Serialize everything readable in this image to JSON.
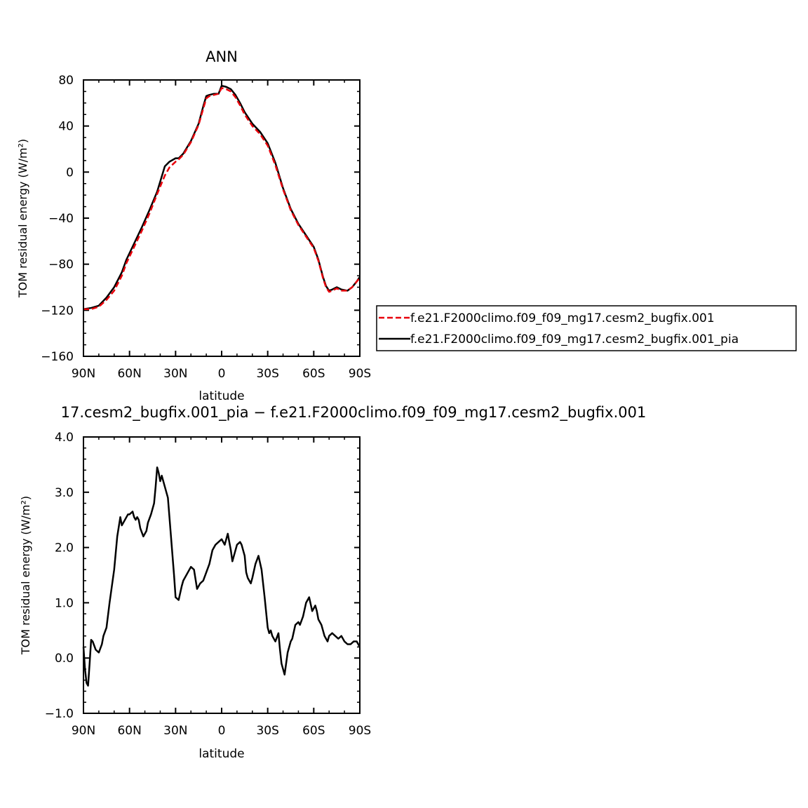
{
  "chart_data": [
    {
      "type": "line",
      "title": "ANN",
      "xlabel": "latitude",
      "ylabel": "TOM residual energy (W/m²)",
      "xlim": [
        90,
        -90
      ],
      "ylim": [
        -160,
        80
      ],
      "xticks": [
        {
          "v": 90,
          "label": "90N"
        },
        {
          "v": 60,
          "label": "60N"
        },
        {
          "v": 30,
          "label": "30N"
        },
        {
          "v": 0,
          "label": "0"
        },
        {
          "v": -30,
          "label": "30S"
        },
        {
          "v": -60,
          "label": "60S"
        },
        {
          "v": -90,
          "label": "90S"
        }
      ],
      "yticks": [
        {
          "v": 80,
          "label": "80"
        },
        {
          "v": 40,
          "label": "40"
        },
        {
          "v": 0,
          "label": "0"
        },
        {
          "v": -40,
          "label": "−40"
        },
        {
          "v": -80,
          "label": "−80"
        },
        {
          "v": -120,
          "label": "−120"
        },
        {
          "v": -160,
          "label": "−160"
        }
      ],
      "legend_position": "right",
      "series": [
        {
          "name": "f.e21.F2000climo.f09_f09_mg17.cesm2_bugfix.001",
          "color": "#e8000b",
          "dash": "dashed",
          "x": [
            90,
            85,
            80,
            75,
            70,
            65,
            62,
            57,
            52,
            47,
            42,
            37,
            34,
            30,
            28,
            25,
            20,
            15,
            12,
            10,
            8,
            5,
            2,
            0,
            -3,
            -6,
            -9,
            -12,
            -15,
            -20,
            -25,
            -30,
            -35,
            -40,
            -45,
            -50,
            -55,
            -60,
            -63,
            -66,
            -68,
            -70,
            -72,
            -75,
            -78,
            -82,
            -85,
            -88,
            -90
          ],
          "y": [
            -119,
            -119,
            -117,
            -111,
            -103,
            -90,
            -79,
            -65,
            -51,
            -36,
            -19,
            -3,
            4,
            9,
            11,
            15,
            26,
            41,
            55,
            64,
            66,
            67,
            68,
            73,
            72,
            70,
            65,
            58,
            50,
            40,
            33,
            23,
            6,
            -15,
            -33,
            -46,
            -56,
            -66,
            -77,
            -92,
            -100,
            -104,
            -103,
            -101,
            -103,
            -103,
            -100,
            -95,
            -92
          ]
        },
        {
          "name": "f.e21.F2000climo.f09_f09_mg17.cesm2_bugfix.001_pia",
          "color": "#000000",
          "dash": "solid",
          "x": [
            90,
            85,
            80,
            75,
            70,
            65,
            62,
            57,
            52,
            47,
            42,
            37,
            34,
            30,
            28,
            25,
            20,
            15,
            12,
            10,
            8,
            5,
            2,
            0,
            -3,
            -6,
            -9,
            -12,
            -15,
            -20,
            -25,
            -30,
            -35,
            -40,
            -45,
            -50,
            -55,
            -60,
            -63,
            -66,
            -68,
            -70,
            -72,
            -75,
            -78,
            -82,
            -85,
            -88,
            -90
          ],
          "y": [
            -119,
            -118,
            -116,
            -109,
            -100,
            -87,
            -76,
            -62,
            -48,
            -33,
            -17,
            5,
            9,
            12,
            12,
            16,
            27,
            42,
            57,
            66,
            67,
            68,
            68,
            75,
            74,
            72,
            67,
            60,
            52,
            42,
            35,
            25,
            8,
            -14,
            -32,
            -45,
            -55,
            -65,
            -76,
            -91,
            -99,
            -103,
            -102,
            -100,
            -102,
            -103,
            -100,
            -95,
            -91
          ]
        }
      ]
    },
    {
      "type": "line",
      "title": "17.cesm2_bugfix.001_pia − f.e21.F2000climo.f09_f09_mg17.cesm2_bugfix.001",
      "xlabel": "latitude",
      "ylabel": "TOM residual energy (W/m²)",
      "xlim": [
        90,
        -90
      ],
      "ylim": [
        -1.0,
        4.0
      ],
      "xticks": [
        {
          "v": 90,
          "label": "90N"
        },
        {
          "v": 60,
          "label": "60N"
        },
        {
          "v": 30,
          "label": "30N"
        },
        {
          "v": 0,
          "label": "0"
        },
        {
          "v": -30,
          "label": "30S"
        },
        {
          "v": -60,
          "label": "60S"
        },
        {
          "v": -90,
          "label": "90S"
        }
      ],
      "yticks": [
        {
          "v": 4.0,
          "label": "4.0"
        },
        {
          "v": 3.0,
          "label": "3.0"
        },
        {
          "v": 2.0,
          "label": "2.0"
        },
        {
          "v": 1.0,
          "label": "1.0"
        },
        {
          "v": 0.0,
          "label": "0.0"
        },
        {
          "v": -1.0,
          "label": "−1.0"
        }
      ],
      "series": [
        {
          "color": "#000000",
          "dash": "solid",
          "x": [
            90,
            89,
            88,
            87,
            86,
            85,
            84,
            82,
            80,
            78,
            77,
            75,
            73,
            71,
            70,
            68,
            66,
            65,
            63,
            61,
            60,
            58,
            57,
            56,
            55,
            54,
            53,
            51,
            49,
            48,
            46,
            44,
            43,
            42,
            41,
            40,
            39,
            37,
            35,
            33,
            31,
            30,
            28,
            26,
            25,
            22,
            20,
            18,
            16,
            14,
            12,
            10,
            8,
            6,
            4,
            2,
            0,
            -2,
            -3,
            -4,
            -5,
            -6,
            -7,
            -8,
            -10,
            -12,
            -13,
            -15,
            -16,
            -17,
            -18,
            -19,
            -20,
            -22,
            -24,
            -26,
            -28,
            -30,
            -31,
            -32,
            -33,
            -35,
            -37,
            -38,
            -39,
            -40,
            -41,
            -43,
            -45,
            -46,
            -48,
            -50,
            -51,
            -53,
            -55,
            -57,
            -59,
            -61,
            -62,
            -63,
            -64,
            -65,
            -66,
            -67,
            -68,
            -69,
            -70,
            -72,
            -74,
            -76,
            -78,
            -80,
            -82,
            -84,
            -86,
            -88,
            -89,
            -90
          ],
          "y": [
            0.2,
            -0.2,
            -0.45,
            -0.5,
            -0.1,
            0.33,
            0.3,
            0.15,
            0.1,
            0.25,
            0.4,
            0.55,
            1.0,
            1.4,
            1.6,
            2.2,
            2.55,
            2.4,
            2.5,
            2.6,
            2.6,
            2.65,
            2.55,
            2.5,
            2.55,
            2.5,
            2.35,
            2.2,
            2.3,
            2.45,
            2.6,
            2.8,
            3.1,
            3.45,
            3.35,
            3.2,
            3.3,
            3.1,
            2.9,
            2.2,
            1.5,
            1.1,
            1.05,
            1.3,
            1.4,
            1.55,
            1.65,
            1.6,
            1.25,
            1.35,
            1.4,
            1.55,
            1.7,
            1.95,
            2.05,
            2.1,
            2.15,
            2.05,
            2.15,
            2.25,
            2.1,
            1.95,
            1.75,
            1.85,
            2.05,
            2.1,
            2.05,
            1.85,
            1.55,
            1.45,
            1.4,
            1.35,
            1.45,
            1.7,
            1.85,
            1.6,
            1.1,
            0.55,
            0.45,
            0.5,
            0.4,
            0.3,
            0.45,
            0.15,
            -0.1,
            -0.2,
            -0.3,
            0.1,
            0.3,
            0.35,
            0.6,
            0.65,
            0.6,
            0.75,
            1.0,
            1.1,
            0.85,
            0.95,
            0.85,
            0.7,
            0.65,
            0.6,
            0.5,
            0.4,
            0.35,
            0.3,
            0.4,
            0.45,
            0.4,
            0.35,
            0.4,
            0.3,
            0.25,
            0.25,
            0.3,
            0.3,
            0.25,
            0.2
          ]
        }
      ]
    }
  ]
}
